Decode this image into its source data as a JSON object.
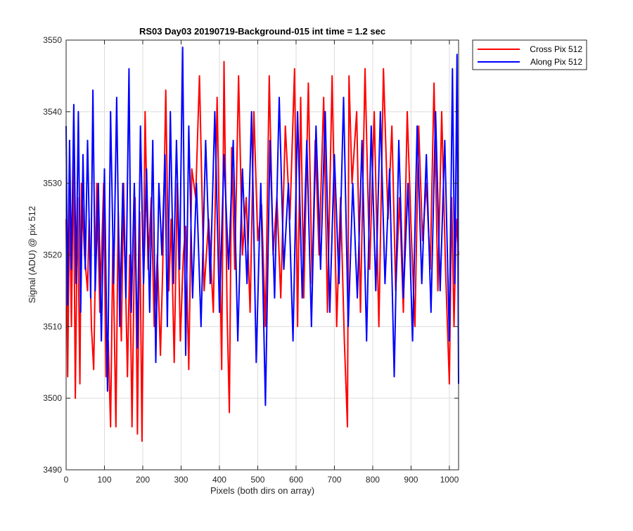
{
  "chart_data": {
    "type": "line",
    "title": "RS03 Day03 20190719-Background-015 int time = 1.2 sec",
    "xlabel": "Pixels (both dirs on array)",
    "ylabel": "Signal (ADU) @ pix 512",
    "xlim": [
      0,
      1024
    ],
    "ylim": [
      3490,
      3550
    ],
    "xticks": [
      0,
      100,
      200,
      300,
      400,
      500,
      600,
      700,
      800,
      900,
      1000
    ],
    "yticks": [
      3490,
      3500,
      3510,
      3520,
      3530,
      3540,
      3550
    ],
    "grid": true,
    "legend_position": "outside top-right",
    "series": [
      {
        "name": "Cross Pix 512",
        "color": "#ff0000",
        "x": [
          0,
          4,
          9,
          14,
          19,
          24,
          30,
          36,
          40,
          48,
          56,
          60,
          66,
          72,
          80,
          88,
          98,
          104,
          110,
          116,
          122,
          130,
          136,
          144,
          150,
          160,
          166,
          172,
          180,
          186,
          192,
          198,
          206,
          214,
          222,
          230,
          238,
          246,
          252,
          260,
          268,
          274,
          282,
          290,
          298,
          306,
          312,
          320,
          328,
          338,
          348,
          360,
          372,
          384,
          394,
          406,
          412,
          420,
          426,
          432,
          440,
          450,
          460,
          470,
          480,
          490,
          500,
          510,
          520,
          530,
          540,
          550,
          560,
          572,
          584,
          596,
          604,
          612,
          620,
          632,
          642,
          650,
          660,
          672,
          682,
          694,
          706,
          716,
          726,
          734,
          738,
          746,
          758,
          768,
          780,
          792,
          804,
          816,
          828,
          840,
          850,
          860,
          870,
          880,
          890,
          900,
          910,
          920,
          930,
          940,
          950,
          960,
          970,
          980,
          990,
          1000,
          1006,
          1012,
          1018,
          1024
        ],
        "y": [
          3525,
          3503,
          3528,
          3510,
          3535,
          3500,
          3528,
          3502,
          3530,
          3520,
          3515,
          3525,
          3510,
          3504,
          3530,
          3512,
          3530,
          3503,
          3508,
          3496,
          3522,
          3496,
          3526,
          3508,
          3530,
          3503,
          3520,
          3496,
          3528,
          3495,
          3526,
          3494,
          3540,
          3518,
          3528,
          3510,
          3520,
          3506,
          3518,
          3543,
          3515,
          3525,
          3505,
          3530,
          3508,
          3520,
          3524,
          3504,
          3532,
          3528,
          3545,
          3515,
          3525,
          3512,
          3542,
          3504,
          3547,
          3512,
          3498,
          3535,
          3518,
          3545,
          3520,
          3528,
          3512,
          3540,
          3522,
          3527,
          3510,
          3545,
          3520,
          3528,
          3514,
          3538,
          3525,
          3546,
          3510,
          3542,
          3514,
          3544,
          3516,
          3536,
          3520,
          3542,
          3512,
          3545,
          3510,
          3528,
          3508,
          3496,
          3545,
          3530,
          3540,
          3512,
          3546,
          3518,
          3540,
          3510,
          3546,
          3525,
          3538,
          3515,
          3528,
          3512,
          3540,
          3524,
          3510,
          3538,
          3522,
          3530,
          3518,
          3544,
          3515,
          3540,
          3518,
          3502,
          3528,
          3510,
          3525,
          3520
        ]
      },
      {
        "name": "Along Pix 512",
        "color": "#0000ff",
        "x": [
          0,
          4,
          9,
          14,
          20,
          26,
          32,
          38,
          44,
          50,
          56,
          64,
          70,
          76,
          84,
          92,
          100,
          108,
          116,
          124,
          132,
          140,
          148,
          156,
          164,
          170,
          178,
          186,
          194,
          202,
          210,
          218,
          226,
          234,
          242,
          250,
          258,
          264,
          272,
          280,
          288,
          296,
          304,
          312,
          320,
          330,
          340,
          352,
          364,
          376,
          388,
          400,
          412,
          424,
          436,
          448,
          460,
          472,
          484,
          496,
          508,
          520,
          532,
          544,
          556,
          568,
          580,
          592,
          604,
          616,
          628,
          640,
          652,
          664,
          676,
          688,
          700,
          712,
          724,
          736,
          748,
          760,
          772,
          784,
          796,
          808,
          820,
          832,
          844,
          856,
          868,
          880,
          892,
          904,
          916,
          928,
          940,
          952,
          964,
          976,
          988,
          1000,
          1008,
          1014,
          1020,
          1024
        ],
        "y": [
          3538,
          3513,
          3536,
          3518,
          3541,
          3516,
          3540,
          3512,
          3534,
          3518,
          3536,
          3514,
          3543,
          3515,
          3530,
          3508,
          3532,
          3501,
          3540,
          3516,
          3542,
          3510,
          3530,
          3514,
          3546,
          3512,
          3530,
          3507,
          3538,
          3516,
          3532,
          3512,
          3536,
          3505,
          3530,
          3520,
          3534,
          3510,
          3540,
          3516,
          3536,
          3518,
          3549,
          3506,
          3538,
          3514,
          3530,
          3510,
          3536,
          3516,
          3540,
          3512,
          3534,
          3518,
          3536,
          3508,
          3532,
          3516,
          3540,
          3505,
          3530,
          3499,
          3536,
          3514,
          3542,
          3518,
          3530,
          3508,
          3540,
          3514,
          3536,
          3510,
          3538,
          3518,
          3540,
          3512,
          3534,
          3516,
          3542,
          3510,
          3530,
          3514,
          3536,
          3508,
          3538,
          3515,
          3540,
          3516,
          3532,
          3503,
          3536,
          3514,
          3530,
          3508,
          3538,
          3516,
          3534,
          3512,
          3540,
          3515,
          3536,
          3508,
          3546,
          3516,
          3548,
          3502
        ]
      }
    ]
  }
}
